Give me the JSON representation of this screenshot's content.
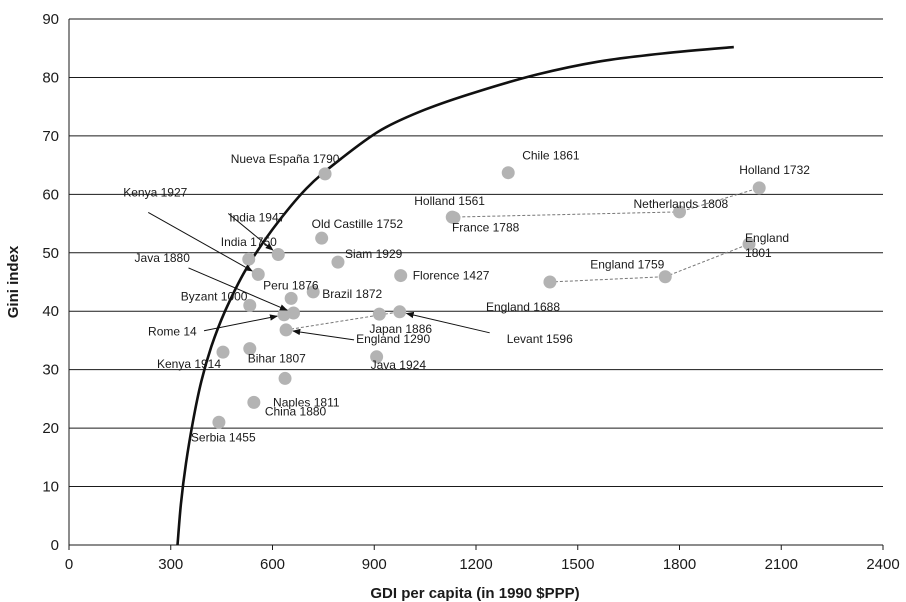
{
  "chart_data": {
    "type": "scatter",
    "xlabel": "GDI per capita (in 1990 $PPP)",
    "ylabel": "Gini index",
    "xlim": [
      0,
      2400
    ],
    "ylim": [
      0,
      90
    ],
    "xticks": [
      0,
      300,
      600,
      900,
      1200,
      1500,
      1800,
      2100,
      2400
    ],
    "yticks": [
      0,
      10,
      20,
      30,
      40,
      50,
      60,
      70,
      80,
      90
    ],
    "grid": "horizontal",
    "colors": {
      "points": "#b3b3b3",
      "frontier": "#111111",
      "connector": "#777777"
    },
    "points": [
      {
        "label": "Nueva España 1790",
        "x": 755,
        "y": 63.5
      },
      {
        "label": "Chile 1861",
        "x": 1295,
        "y": 63.7
      },
      {
        "label": "Holland 1732",
        "x": 2035,
        "y": 61.1
      },
      {
        "label": "Netherlands 1808",
        "x": 1800,
        "y": 57.0
      },
      {
        "label": "Holland 1561",
        "x": 1130,
        "y": 56.1
      },
      {
        "label": "France 1788",
        "x": 1135,
        "y": 56.0
      },
      {
        "label": "Old Castille 1752",
        "x": 745,
        "y": 52.5
      },
      {
        "label": "England 1801",
        "x": 2005,
        "y": 51.5
      },
      {
        "label": "India 1947",
        "x": 617,
        "y": 49.7
      },
      {
        "label": "India 1750",
        "x": 530,
        "y": 48.9
      },
      {
        "label": "Siam 1929",
        "x": 793,
        "y": 48.4
      },
      {
        "label": "Kenya 1927",
        "x": 558,
        "y": 46.3
      },
      {
        "label": "Florence 1427",
        "x": 978,
        "y": 46.1
      },
      {
        "label": "England 1759",
        "x": 1758,
        "y": 45.9
      },
      {
        "label": "England 1688",
        "x": 1418,
        "y": 45.0
      },
      {
        "label": "Brazil 1872",
        "x": 720,
        "y": 43.3
      },
      {
        "label": "Peru 1876",
        "x": 655,
        "y": 42.2
      },
      {
        "label": "Byzant 1000",
        "x": 533,
        "y": 41.0
      },
      {
        "label": "Java 1880",
        "x": 662,
        "y": 39.7
      },
      {
        "label": "Rome 14",
        "x": 634,
        "y": 39.4
      },
      {
        "label": "Levant 1596",
        "x": 975,
        "y": 39.9
      },
      {
        "label": "Japan 1886",
        "x": 915,
        "y": 39.5
      },
      {
        "label": "England 1290",
        "x": 640,
        "y": 36.8
      },
      {
        "label": "Bihar 1807",
        "x": 533,
        "y": 33.6
      },
      {
        "label": "Kenya 1914",
        "x": 454,
        "y": 33.0
      },
      {
        "label": "Java 1924",
        "x": 907,
        "y": 32.2
      },
      {
        "label": "Naples 1811",
        "x": 637,
        "y": 28.5
      },
      {
        "label": "China 1880",
        "x": 545,
        "y": 24.4
      },
      {
        "label": "Serbia 1455",
        "x": 442,
        "y": 21.0
      }
    ],
    "connectors": [
      [
        [
          1130,
          56.1
        ],
        [
          1800,
          57.0
        ],
        [
          2035,
          61.1
        ]
      ],
      [
        [
          1418,
          45.0
        ],
        [
          1758,
          45.9
        ],
        [
          2005,
          51.5
        ]
      ],
      [
        [
          640,
          36.8
        ],
        [
          975,
          39.9
        ]
      ]
    ],
    "frontier": [
      [
        320,
        0
      ],
      [
        330,
        7
      ],
      [
        345,
        14
      ],
      [
        365,
        21
      ],
      [
        390,
        28
      ],
      [
        420,
        34
      ],
      [
        460,
        40
      ],
      [
        520,
        47
      ],
      [
        600,
        54
      ],
      [
        700,
        61
      ],
      [
        800,
        66
      ],
      [
        920,
        71
      ],
      [
        1050,
        74.5
      ],
      [
        1200,
        77.5
      ],
      [
        1380,
        80.5
      ],
      [
        1560,
        82.7
      ],
      [
        1750,
        84.1
      ],
      [
        1960,
        85.2
      ]
    ]
  }
}
